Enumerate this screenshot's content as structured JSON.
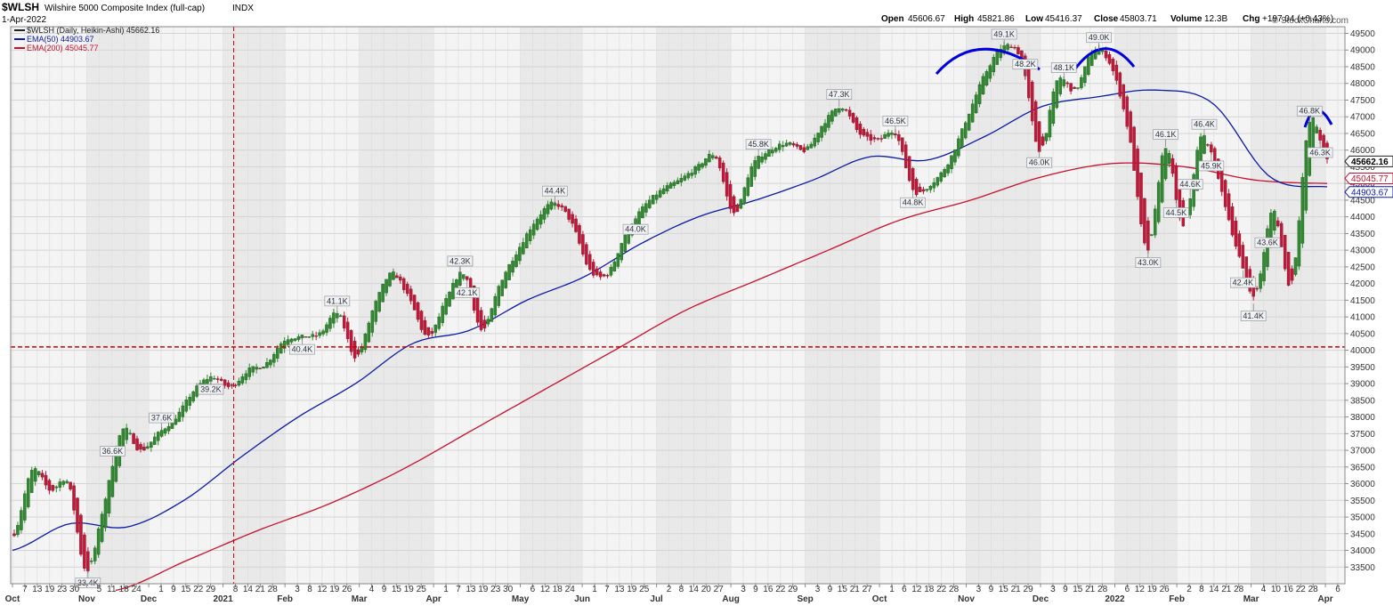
{
  "header": {
    "symbol": "$WLSH",
    "name": "Wilshire 5000 Composite Index (full-cap)",
    "exchange": "INDX",
    "date": "1-Apr-2022",
    "open_label": "Open",
    "open": "45606.67",
    "high_label": "High",
    "high": "45821.86",
    "low_label": "Low",
    "low": "45416.37",
    "close_label": "Close",
    "close": "45803.71",
    "volume_label": "Volume",
    "volume": "12.3B",
    "chg_label": "Chg",
    "chg": "+197.04 (+0.43%)",
    "watermark": "© StockCharts.com"
  },
  "legend": [
    {
      "text": "$WLSH (Daily, Heikin-Ashi) 45662.16",
      "color": "#222222"
    },
    {
      "text": "EMA(50) 44903.67",
      "color": "#0a1aa8"
    },
    {
      "text": "EMA(200) 45045.77",
      "color": "#c8102e"
    }
  ],
  "colors": {
    "up": "#2e8b2e",
    "down": "#d0103a",
    "ema50": "#0a1aa8",
    "ema200": "#c8102e",
    "annotation": "#0000dd",
    "ref": "#cc0000"
  },
  "chart_data": {
    "type": "candlestick",
    "y_ticks": [
      33500,
      34000,
      34500,
      35000,
      35500,
      36000,
      36500,
      37000,
      37500,
      38000,
      38500,
      39000,
      39500,
      40000,
      40500,
      41000,
      41500,
      42000,
      42500,
      43000,
      43500,
      44000,
      44500,
      45000,
      45500,
      46000,
      46500,
      47000,
      47500,
      48000,
      48500,
      49000,
      49500
    ],
    "y_range": [
      33000,
      49700
    ],
    "x_ticks": [
      "Oct",
      "7",
      "13",
      "19",
      "23",
      "30",
      "Nov",
      "5",
      "11",
      "18",
      "24",
      "Dec",
      "1",
      "9",
      "15",
      "22",
      "29",
      "2021",
      "8",
      "14",
      "21",
      "28",
      "Feb",
      "3",
      "8",
      "12",
      "19",
      "26",
      "Mar",
      "4",
      "9",
      "15",
      "19",
      "25",
      "Apr",
      "1",
      "7",
      "13",
      "19",
      "23",
      "30",
      "May",
      "6",
      "12",
      "18",
      "24",
      "Jun",
      "1",
      "7",
      "13",
      "19",
      "25",
      "Jul",
      "2",
      "8",
      "14",
      "20",
      "27",
      "Aug",
      "3",
      "9",
      "16",
      "22",
      "29",
      "Sep",
      "3",
      "9",
      "15",
      "21",
      "27",
      "Oct",
      "1",
      "6",
      "12",
      "18",
      "22",
      "28",
      "Nov",
      "3",
      "9",
      "15",
      "21",
      "29",
      "Dec",
      "3",
      "9",
      "15",
      "21",
      "28",
      "2022",
      "6",
      "12",
      "19",
      "26",
      "Feb",
      "2",
      "8",
      "14",
      "21",
      "28",
      "Mar",
      "4",
      "10",
      "16",
      "22",
      "28",
      "Apr",
      "6"
    ],
    "month_labels": [
      "Oct",
      "Nov",
      "Dec",
      "2021",
      "Feb",
      "Mar",
      "Apr",
      "May",
      "Jun",
      "Jul",
      "Aug",
      "Sep",
      "Oct",
      "Nov",
      "Dec",
      "2022",
      "Feb",
      "Mar",
      "Apr"
    ],
    "price_anchors": [
      34500,
      36400,
      35800,
      36000,
      33400,
      35400,
      37600,
      37000,
      37500,
      38000,
      38800,
      39200,
      38900,
      39400,
      39600,
      40300,
      40400,
      40500,
      41100,
      39800,
      41300,
      42300,
      41500,
      40400,
      41500,
      42300,
      40600,
      42000,
      43000,
      43900,
      44400,
      43800,
      42400,
      42300,
      43500,
      44300,
      44800,
      45100,
      45500,
      45800,
      44100,
      45500,
      46000,
      46200,
      46000,
      46800,
      47300,
      46500,
      46300,
      46500,
      44800,
      45000,
      45700,
      47000,
      48300,
      49100,
      48700,
      46000,
      48100,
      47800,
      49000,
      48500,
      46400,
      43000,
      46100,
      43700,
      46400,
      45000,
      43000,
      41700,
      44200,
      42000,
      46800,
      45700
    ],
    "ema50_anchors": [
      34000,
      34800,
      34700,
      35500,
      36800,
      38000,
      39000,
      40200,
      40600,
      41500,
      42200,
      43200,
      44000,
      44500,
      45100,
      45800,
      45700,
      46400,
      47300,
      47600,
      47800,
      47400,
      45200,
      44900
    ],
    "ema200_anchors": [
      32800,
      33700,
      34600,
      35400,
      36400,
      37600,
      38800,
      40000,
      41200,
      42100,
      43000,
      43900,
      44500,
      45200,
      45600,
      45500,
      45100,
      45000
    ],
    "price_labels": [
      {
        "label": "36.6K",
        "type": "high",
        "value": 36600
      },
      {
        "label": "33.4K",
        "type": "low",
        "value": 33400
      },
      {
        "label": "37.6K",
        "type": "high",
        "value": 37600
      },
      {
        "label": "41.1K",
        "type": "high",
        "value": 41100
      },
      {
        "label": "39.2K",
        "type": "low",
        "value": 39200
      },
      {
        "label": "42.3K",
        "type": "high",
        "value": 42300
      },
      {
        "label": "39.2K",
        "type": "low",
        "value": 39200
      },
      {
        "label": "42.3K",
        "type": "high",
        "value": 42300
      },
      {
        "label": "40.4K",
        "type": "low",
        "value": 40400
      },
      {
        "label": "44.4K",
        "type": "high",
        "value": 44400
      },
      {
        "label": "42.1K",
        "type": "low",
        "value": 42100
      },
      {
        "label": "45.8K",
        "type": "high",
        "value": 45800
      },
      {
        "label": "44.0K",
        "type": "low",
        "value": 44000
      },
      {
        "label": "47.3K",
        "type": "high",
        "value": 47300
      },
      {
        "label": "46.5K",
        "type": "high",
        "value": 46500
      },
      {
        "label": "44.8K",
        "type": "low",
        "value": 44800
      },
      {
        "label": "44.5K",
        "type": "low",
        "value": 44500
      },
      {
        "label": "49.1K",
        "type": "high",
        "value": 49100
      },
      {
        "label": "48.2K",
        "type": "high",
        "value": 48200
      },
      {
        "label": "45.9K",
        "type": "low",
        "value": 45900
      },
      {
        "label": "46.0K",
        "type": "low",
        "value": 46000
      },
      {
        "label": "49.0K",
        "type": "high",
        "value": 49000
      },
      {
        "label": "48.1K",
        "type": "high",
        "value": 48100
      },
      {
        "label": "46.3K",
        "type": "low",
        "value": 46300
      },
      {
        "label": "43.0K",
        "type": "low",
        "value": 43000
      },
      {
        "label": "42.4K",
        "type": "low",
        "value": 42400
      },
      {
        "label": "46.1K",
        "type": "high",
        "value": 46100
      },
      {
        "label": "46.4K",
        "type": "high",
        "value": 46400
      },
      {
        "label": "43.6K",
        "type": "low",
        "value": 43600
      },
      {
        "label": "44.6K",
        "type": "high",
        "value": 44600
      },
      {
        "label": "41.4K",
        "type": "low",
        "value": 41400
      },
      {
        "label": "46.8K",
        "type": "high",
        "value": 46800
      }
    ],
    "price_tags": [
      {
        "value": 45662.16,
        "label": "45662.16",
        "style": "current"
      },
      {
        "value": 45045.77,
        "label": "45045.77",
        "style": "ema200"
      },
      {
        "value": 44903.67,
        "label": "44903.67",
        "style": "ema50"
      }
    ],
    "reference_lines": [
      {
        "type": "horizontal",
        "value": 40100
      },
      {
        "type": "vertical",
        "at": "2021"
      }
    ]
  }
}
